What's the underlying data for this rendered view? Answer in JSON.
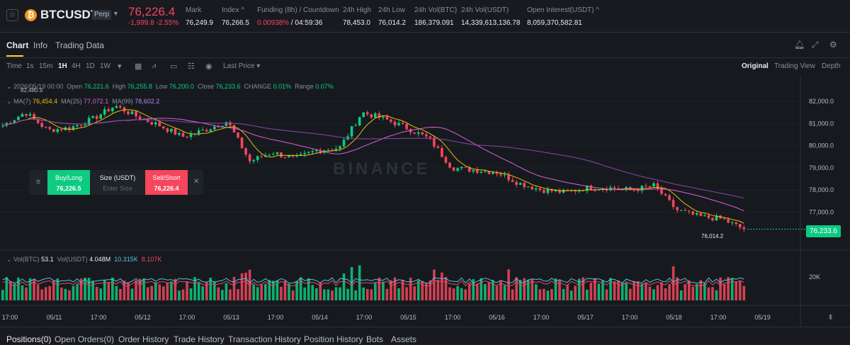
{
  "ticker": {
    "symbol": "BTCUSDT",
    "badge": "Perp",
    "last_price": "76,226.4",
    "change": "-1,999.8 -2.55%",
    "stats": [
      {
        "label": "Mark",
        "value": "76,249.9"
      },
      {
        "label": "Index ^",
        "value": "76,266.5"
      },
      {
        "label": "Funding (8h) / Countdown",
        "value_red": "0.00938%",
        "value": " / 04:59:36"
      },
      {
        "label": "24h High",
        "value": "78,453.0"
      },
      {
        "label": "24h Low",
        "value": "76,014.2"
      },
      {
        "label": "24h Vol(BTC)",
        "value": "186,379.091"
      },
      {
        "label": "24h Vol(USDT)",
        "value": "14,339,613,136.78"
      },
      {
        "label": "Open Interest(USDT) ^",
        "value": "8,059,370,582.81"
      }
    ]
  },
  "tabs": [
    "Chart",
    "Info",
    "Trading Data"
  ],
  "toolbar": {
    "intervals": [
      "Time",
      "1s",
      "15m",
      "1H",
      "4H",
      "1D",
      "1W"
    ],
    "active_interval": "1H",
    "price_mode": "Last Price",
    "views": [
      "Original",
      "Trading View",
      "Depth"
    ],
    "active_view": "Original"
  },
  "ohlc": {
    "date": "2026/05/19 00:00",
    "open_label": "Open",
    "open": "76,221.6",
    "high_label": "High",
    "high": "76,255.8",
    "low_label": "Low",
    "low": "76,200.0",
    "close_label": "Close",
    "close": "76,233.6",
    "change_label": "CHANGE",
    "change": "0.01%",
    "range_label": "Range",
    "range": "0.07%"
  },
  "ma": {
    "ma7_label": "MA(7)",
    "ma7": "76,454.4",
    "ma25_label": "MA(25)",
    "ma25": "77,072.1",
    "ma99_label": "MA(99)",
    "ma99": "78,602.2"
  },
  "high_marker": "82,480.9",
  "low_marker": "76,014.2",
  "current_price_tag": "76,233.6",
  "order_panel": {
    "buy_label": "Buy/Long",
    "buy_price": "76,226.5",
    "size_label": "Size (USDT)",
    "size_placeholder": "Enter Size",
    "sell_label": "Sell/Short",
    "sell_price": "76,226.4"
  },
  "volume": {
    "vol_btc_label": "Vol(BTC)",
    "vol_btc": "53.1",
    "vol_usdt_label": "Vol(USDT)",
    "vol_usdt": "4.048M",
    "ma1": "10.315K",
    "ma2": "8.107K",
    "axis_label": "20K"
  },
  "price_axis": [
    "82,000.0",
    "81,000.0",
    "80,000.0",
    "79,000.0",
    "78,000.0",
    "77,000.0"
  ],
  "time_axis": [
    "17:00",
    "05/11",
    "17:00",
    "05/12",
    "17:00",
    "05/13",
    "17:00",
    "05/14",
    "17:00",
    "05/15",
    "17:00",
    "05/16",
    "17:00",
    "05/17",
    "17:00",
    "05/18",
    "17:00",
    "05/19"
  ],
  "watermark": "BINANCE",
  "bottom_tabs": [
    "Positions(0)",
    "Open Orders(0)",
    "Order History",
    "Trade History",
    "Transaction History",
    "Position History",
    "Bots",
    "Assets"
  ],
  "colors": {
    "up": "#0ecb81",
    "down": "#f6465d",
    "ma7": "#f0b90b",
    "ma25": "#e05cd8",
    "ma99": "#8e44ad",
    "accent": "#fcd535"
  },
  "chart_data": {
    "type": "candlestick",
    "interval": "1H",
    "x_range": [
      "05/10 17:00",
      "05/19 00:00"
    ],
    "ylim": [
      76000,
      82500
    ],
    "series_close_path": [
      [
        "05/10 17:00",
        80900
      ],
      [
        "05/11 00:00",
        81500
      ],
      [
        "05/11 06:00",
        80700
      ],
      [
        "05/11 12:00",
        80800
      ],
      [
        "05/11 18:00",
        81200
      ],
      [
        "05/12 00:00",
        81800
      ],
      [
        "05/12 06:00",
        81300
      ],
      [
        "05/12 12:00",
        80900
      ],
      [
        "05/12 18:00",
        80400
      ],
      [
        "05/13 00:00",
        80700
      ],
      [
        "05/13 06:00",
        81100
      ],
      [
        "05/13 12:00",
        79300
      ],
      [
        "05/13 18:00",
        79700
      ],
      [
        "05/14 00:00",
        79400
      ],
      [
        "05/14 06:00",
        79800
      ],
      [
        "05/14 12:00",
        79900
      ],
      [
        "05/14 18:00",
        81500
      ],
      [
        "05/15 00:00",
        81200
      ],
      [
        "05/15 06:00",
        80800
      ],
      [
        "05/15 12:00",
        80300
      ],
      [
        "05/15 18:00",
        79000
      ],
      [
        "05/16 00:00",
        78900
      ],
      [
        "05/16 06:00",
        78800
      ],
      [
        "05/16 12:00",
        78300
      ],
      [
        "05/16 18:00",
        78000
      ],
      [
        "05/17 00:00",
        77900
      ],
      [
        "05/17 06:00",
        78100
      ],
      [
        "05/17 12:00",
        78100
      ],
      [
        "05/17 18:00",
        78000
      ],
      [
        "05/18 00:00",
        78200
      ],
      [
        "05/18 06:00",
        77100
      ],
      [
        "05/18 12:00",
        76800
      ],
      [
        "05/18 18:00",
        76700
      ],
      [
        "05/19 00:00",
        76233.6
      ]
    ]
  }
}
